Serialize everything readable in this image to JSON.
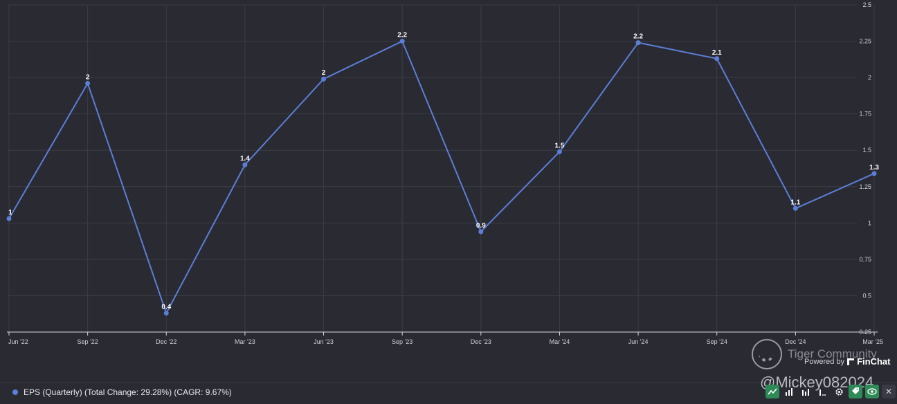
{
  "chart_data": {
    "type": "line",
    "x": [
      "Jun '22",
      "Sep '22",
      "Dec '22",
      "Mar '23",
      "Jun '23",
      "Sep '23",
      "Dec '23",
      "Mar '24",
      "Jun '24",
      "Sep '24",
      "Dec '24",
      "Mar '25"
    ],
    "series": [
      {
        "name": "EPS (Quarterly) (Total Change: 29.28%) (CAGR: 9.67%)",
        "values": [
          1.03,
          1.96,
          0.38,
          1.4,
          1.99,
          2.25,
          0.94,
          1.49,
          2.24,
          2.13,
          1.1,
          1.34
        ],
        "labels": [
          "1",
          "2",
          "0.4",
          "1.4",
          "2",
          "2.2",
          "0.9",
          "1.5",
          "2.2",
          "2.1",
          "1.1",
          "1.3"
        ],
        "color": "#5b7fd6"
      }
    ],
    "yticks": [
      "0.25",
      "0.5",
      "0.75",
      "1",
      "1.25",
      "1.5",
      "1.75",
      "2",
      "2.25",
      "2.5"
    ],
    "ylim": [
      0.25,
      2.5
    ],
    "y_axis_side": "right",
    "grid": true,
    "legend_placement": "bottom-left"
  },
  "watermark": {
    "community": "Tiger Community",
    "user": "@Mickey082024"
  },
  "branding": {
    "powered_by": "Powered by",
    "brand": "FinChat"
  },
  "toolbar": {
    "icons": [
      "line-chart-icon",
      "bar-chart-icon",
      "stacked-bar-icon",
      "more-icon",
      "gear-icon",
      "tag-icon",
      "eye-icon",
      "close-icon"
    ],
    "close_glyph": "✕"
  }
}
